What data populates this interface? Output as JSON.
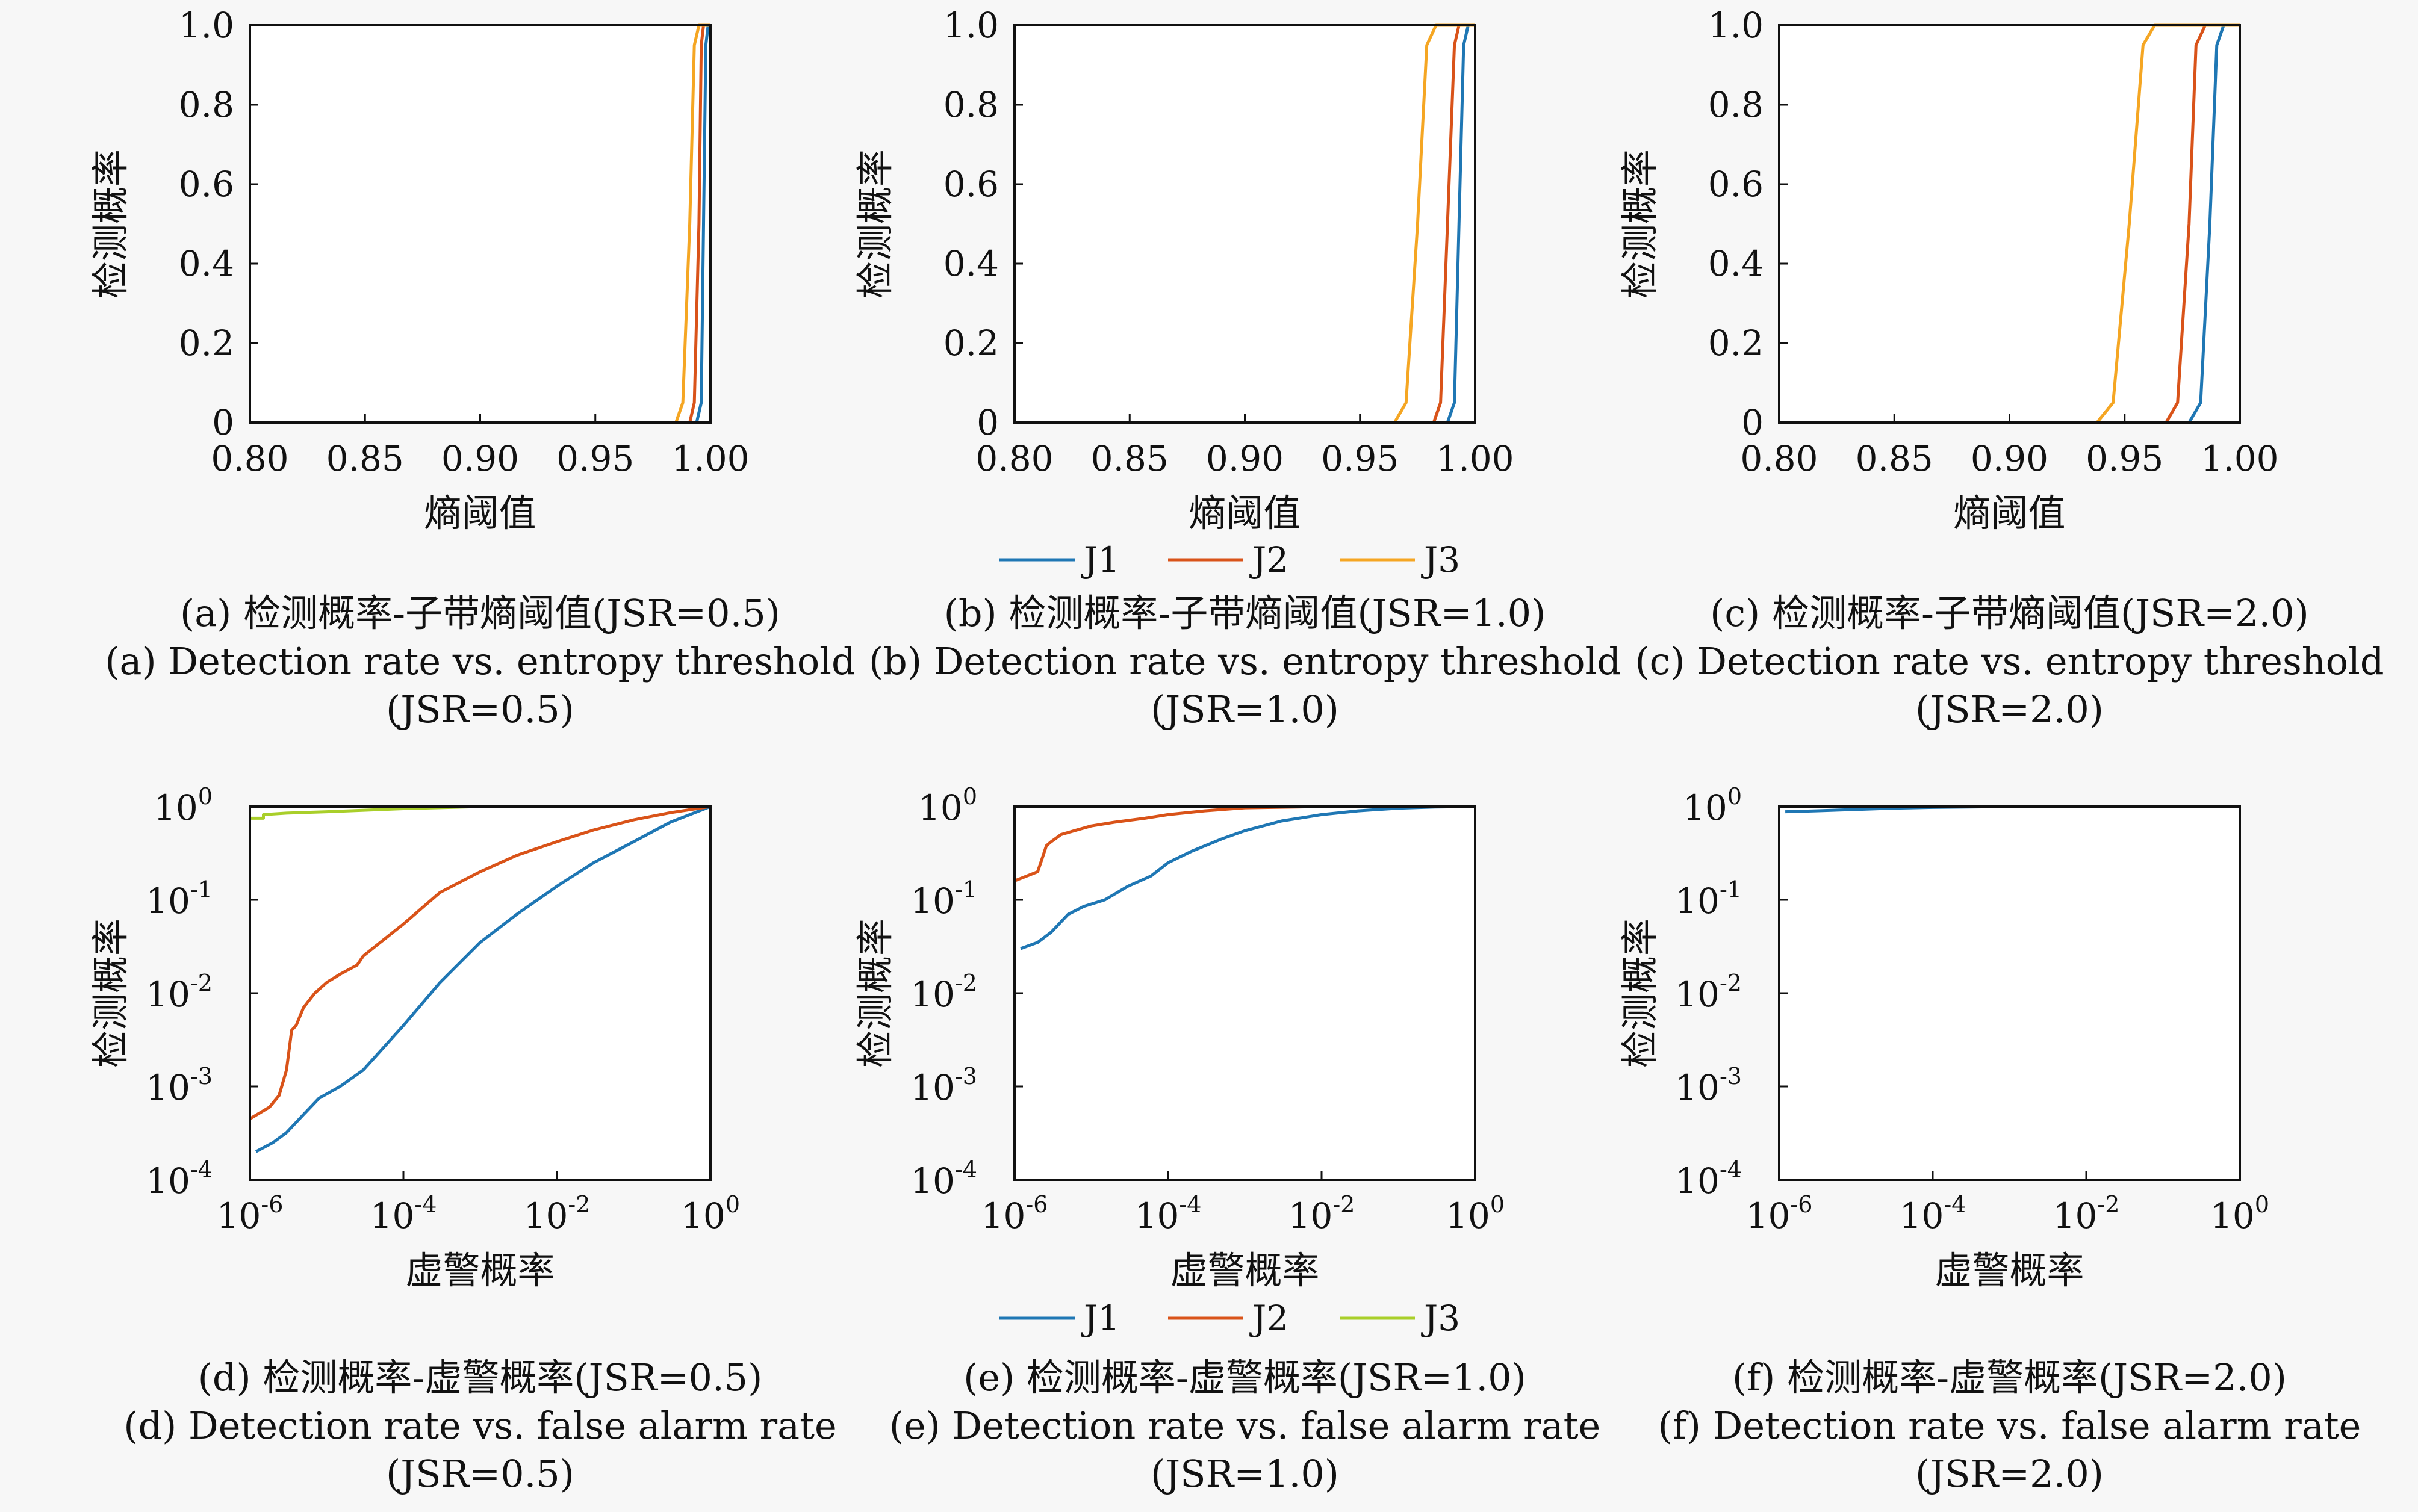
{
  "colors": {
    "J1": "#1f77b4",
    "J2": "#d95319",
    "J3_top": "#f5a623",
    "J3_bottom": "#a9cf2a",
    "axis": "#111111",
    "background": "#f7f7f7"
  },
  "legend_top": {
    "entries": [
      "J1",
      "J2",
      "J3"
    ],
    "colors": [
      "#1f77b4",
      "#d95319",
      "#f5a623"
    ]
  },
  "legend_bottom": {
    "entries": [
      "J1",
      "J2",
      "J3"
    ],
    "colors": [
      "#1f77b4",
      "#d95319",
      "#a9cf2a"
    ]
  },
  "chart_data": [
    {
      "type": "line",
      "panel": "a",
      "xlabel": "熵阈值",
      "ylabel": "检测概率",
      "xlim": [
        0.8,
        1.0
      ],
      "ylim": [
        0,
        1.0
      ],
      "yscale": "linear",
      "xticks": [
        0.8,
        0.85,
        0.9,
        0.95,
        1.0
      ],
      "xtick_labels": [
        "0.80",
        "0.85",
        "0.90",
        "0.95",
        "1.00"
      ],
      "yticks": [
        0,
        0.2,
        0.4,
        0.6,
        0.8,
        1.0
      ],
      "ytick_labels": [
        "0",
        "0.2",
        "0.4",
        "0.6",
        "0.8",
        "1.0"
      ],
      "series": [
        {
          "name": "J1",
          "x": [
            0.8,
            0.994,
            0.996,
            0.997,
            0.998,
            0.999,
            1.0
          ],
          "y": [
            0,
            0,
            0.05,
            0.5,
            0.95,
            1.0,
            1.0
          ]
        },
        {
          "name": "J2",
          "x": [
            0.8,
            0.991,
            0.993,
            0.995,
            0.996,
            0.997,
            1.0
          ],
          "y": [
            0,
            0,
            0.05,
            0.5,
            0.95,
            1.0,
            1.0
          ]
        },
        {
          "name": "J3",
          "x": [
            0.8,
            0.985,
            0.988,
            0.991,
            0.993,
            0.995,
            1.0
          ],
          "y": [
            0,
            0,
            0.05,
            0.5,
            0.95,
            1.0,
            1.0
          ]
        }
      ],
      "caption_cn": "(a) 检测概率-子带熵阈值(JSR=0.5)",
      "caption_en": [
        "(a) Detection rate vs. entropy threshold",
        "(JSR=0.5)"
      ]
    },
    {
      "type": "line",
      "panel": "b",
      "xlabel": "熵阈值",
      "ylabel": "检测概率",
      "xlim": [
        0.8,
        1.0
      ],
      "ylim": [
        0,
        1.0
      ],
      "yscale": "linear",
      "xticks": [
        0.8,
        0.85,
        0.9,
        0.95,
        1.0
      ],
      "xtick_labels": [
        "0.80",
        "0.85",
        "0.90",
        "0.95",
        "1.00"
      ],
      "yticks": [
        0,
        0.2,
        0.4,
        0.6,
        0.8,
        1.0
      ],
      "ytick_labels": [
        "0",
        "0.2",
        "0.4",
        "0.6",
        "0.8",
        "1.0"
      ],
      "series": [
        {
          "name": "J1",
          "x": [
            0.8,
            0.988,
            0.991,
            0.993,
            0.995,
            0.997,
            1.0
          ],
          "y": [
            0,
            0,
            0.05,
            0.5,
            0.95,
            1.0,
            1.0
          ]
        },
        {
          "name": "J2",
          "x": [
            0.8,
            0.982,
            0.985,
            0.988,
            0.991,
            0.993,
            1.0
          ],
          "y": [
            0,
            0,
            0.05,
            0.5,
            0.95,
            1.0,
            1.0
          ]
        },
        {
          "name": "J3",
          "x": [
            0.8,
            0.965,
            0.97,
            0.975,
            0.979,
            0.983,
            1.0
          ],
          "y": [
            0,
            0,
            0.05,
            0.5,
            0.95,
            1.0,
            1.0
          ]
        }
      ],
      "caption_cn": "(b) 检测概率-子带熵阈值(JSR=1.0)",
      "caption_en": [
        "(b) Detection rate vs. entropy threshold",
        "(JSR=1.0)"
      ]
    },
    {
      "type": "line",
      "panel": "c",
      "xlabel": "熵阈值",
      "ylabel": "检测概率",
      "xlim": [
        0.8,
        1.0
      ],
      "ylim": [
        0,
        1.0
      ],
      "yscale": "linear",
      "xticks": [
        0.8,
        0.85,
        0.9,
        0.95,
        1.0
      ],
      "xtick_labels": [
        "0.80",
        "0.85",
        "0.90",
        "0.95",
        "1.00"
      ],
      "yticks": [
        0,
        0.2,
        0.4,
        0.6,
        0.8,
        1.0
      ],
      "ytick_labels": [
        "0",
        "0.2",
        "0.4",
        "0.6",
        "0.8",
        "1.0"
      ],
      "series": [
        {
          "name": "J1",
          "x": [
            0.8,
            0.978,
            0.983,
            0.987,
            0.99,
            0.993,
            1.0
          ],
          "y": [
            0,
            0,
            0.05,
            0.5,
            0.95,
            1.0,
            1.0
          ]
        },
        {
          "name": "J2",
          "x": [
            0.8,
            0.968,
            0.973,
            0.978,
            0.981,
            0.985,
            1.0
          ],
          "y": [
            0,
            0,
            0.05,
            0.5,
            0.95,
            1.0,
            1.0
          ]
        },
        {
          "name": "J3",
          "x": [
            0.8,
            0.938,
            0.945,
            0.952,
            0.958,
            0.963,
            1.0
          ],
          "y": [
            0,
            0,
            0.05,
            0.5,
            0.95,
            1.0,
            1.0
          ]
        }
      ],
      "caption_cn": "(c) 检测概率-子带熵阈值(JSR=2.0)",
      "caption_en": [
        "(c) Detection rate vs. entropy threshold",
        "(JSR=2.0)"
      ]
    },
    {
      "type": "line",
      "panel": "d",
      "xlabel": "虚警概率",
      "ylabel": "检测概率",
      "xscale": "log",
      "yscale": "log",
      "xlim": [
        1e-06,
        1
      ],
      "ylim": [
        0.0001,
        1
      ],
      "xticks": [
        1e-06,
        0.0001,
        0.01,
        1
      ],
      "xtick_labels": [
        [
          "10",
          "-6"
        ],
        [
          "10",
          "-4"
        ],
        [
          "10",
          "-2"
        ],
        [
          "10",
          "0"
        ]
      ],
      "yticks": [
        0.0001,
        0.001,
        0.01,
        0.1,
        1
      ],
      "ytick_labels": [
        [
          "10",
          "-4"
        ],
        [
          "10",
          "-3"
        ],
        [
          "10",
          "-2"
        ],
        [
          "10",
          "-1"
        ],
        [
          "10",
          "0"
        ]
      ],
      "series": [
        {
          "name": "J1",
          "x": [
            1.2e-06,
            2e-06,
            3e-06,
            5e-06,
            8e-06,
            1.5e-05,
            3e-05,
            0.0001,
            0.0003,
            0.001,
            0.003,
            0.01,
            0.03,
            0.1,
            0.3,
            1
          ],
          "y": [
            0.0002,
            0.00025,
            0.00032,
            0.0005,
            0.00075,
            0.001,
            0.0015,
            0.0045,
            0.013,
            0.035,
            0.07,
            0.14,
            0.25,
            0.42,
            0.68,
            1
          ]
        },
        {
          "name": "J2",
          "x": [
            1e-06,
            1.8e-06,
            2.4e-06,
            3e-06,
            3.5e-06,
            4e-06,
            5e-06,
            7e-06,
            1e-05,
            1.5e-05,
            2.5e-05,
            3e-05,
            5e-05,
            0.0001,
            0.0003,
            0.001,
            0.003,
            0.01,
            0.03,
            0.1,
            0.3,
            1
          ],
          "y": [
            0.00045,
            0.0006,
            0.0008,
            0.0015,
            0.004,
            0.0045,
            0.007,
            0.01,
            0.013,
            0.016,
            0.02,
            0.025,
            0.035,
            0.055,
            0.12,
            0.2,
            0.3,
            0.42,
            0.56,
            0.72,
            0.86,
            1
          ]
        },
        {
          "name": "J3",
          "x": [
            1e-06,
            1.5e-06,
            1.5e-06,
            3e-06,
            1e-05,
            0.0001,
            0.001,
            0.01,
            0.1,
            1
          ],
          "y": [
            0.75,
            0.75,
            0.82,
            0.85,
            0.88,
            0.95,
            1,
            1,
            1,
            1
          ]
        }
      ],
      "caption_cn": "(d) 检测概率-虚警概率(JSR=0.5)",
      "caption_en": [
        "(d) Detection rate vs. false alarm rate",
        "(JSR=0.5)"
      ]
    },
    {
      "type": "line",
      "panel": "e",
      "xlabel": "虚警概率",
      "ylabel": "检测概率",
      "xscale": "log",
      "yscale": "log",
      "xlim": [
        1e-06,
        1
      ],
      "ylim": [
        0.0001,
        1
      ],
      "xticks": [
        1e-06,
        0.0001,
        0.01,
        1
      ],
      "xtick_labels": [
        [
          "10",
          "-6"
        ],
        [
          "10",
          "-4"
        ],
        [
          "10",
          "-2"
        ],
        [
          "10",
          "0"
        ]
      ],
      "yticks": [
        0.0001,
        0.001,
        0.01,
        0.1,
        1
      ],
      "ytick_labels": [
        [
          "10",
          "-4"
        ],
        [
          "10",
          "-3"
        ],
        [
          "10",
          "-2"
        ],
        [
          "10",
          "-1"
        ],
        [
          "10",
          "0"
        ]
      ],
      "series": [
        {
          "name": "J1",
          "x": [
            1.2e-06,
            2e-06,
            3e-06,
            5e-06,
            8e-06,
            1.5e-05,
            3e-05,
            6e-05,
            0.0001,
            0.0002,
            0.0005,
            0.001,
            0.003,
            0.01,
            0.03,
            0.1,
            0.3,
            1
          ],
          "y": [
            0.03,
            0.035,
            0.045,
            0.07,
            0.085,
            0.1,
            0.14,
            0.18,
            0.25,
            0.33,
            0.45,
            0.55,
            0.7,
            0.82,
            0.9,
            0.96,
            0.99,
            1
          ]
        },
        {
          "name": "J2",
          "x": [
            1e-06,
            2e-06,
            2.3e-06,
            2.6e-06,
            3e-06,
            3.5e-06,
            4e-06,
            6e-06,
            1e-05,
            2e-05,
            5e-05,
            0.0001,
            0.0003,
            0.001,
            0.01,
            0.1,
            1
          ],
          "y": [
            0.16,
            0.2,
            0.28,
            0.38,
            0.42,
            0.46,
            0.5,
            0.55,
            0.62,
            0.68,
            0.75,
            0.82,
            0.9,
            0.97,
            1,
            1,
            1
          ]
        },
        {
          "name": "J3",
          "x": [
            1e-06,
            0.0001,
            0.01,
            1
          ],
          "y": [
            1,
            1,
            1,
            1
          ]
        }
      ],
      "caption_cn": "(e) 检测概率-虚警概率(JSR=1.0)",
      "caption_en": [
        "(e) Detection rate vs. false alarm rate",
        "(JSR=1.0)"
      ]
    },
    {
      "type": "line",
      "panel": "f",
      "xlabel": "虚警概率",
      "ylabel": "检测概率",
      "xscale": "log",
      "yscale": "log",
      "xlim": [
        1e-06,
        1
      ],
      "ylim": [
        0.0001,
        1
      ],
      "xticks": [
        1e-06,
        0.0001,
        0.01,
        1
      ],
      "xtick_labels": [
        [
          "10",
          "-6"
        ],
        [
          "10",
          "-4"
        ],
        [
          "10",
          "-2"
        ],
        [
          "10",
          "0"
        ]
      ],
      "yticks": [
        0.0001,
        0.001,
        0.01,
        0.1,
        1
      ],
      "ytick_labels": [
        [
          "10",
          "-4"
        ],
        [
          "10",
          "-3"
        ],
        [
          "10",
          "-2"
        ],
        [
          "10",
          "-1"
        ],
        [
          "10",
          "0"
        ]
      ],
      "series": [
        {
          "name": "J1",
          "x": [
            1.2e-06,
            3e-06,
            1e-05,
            3e-05,
            0.0001,
            0.001,
            0.01,
            1
          ],
          "y": [
            0.88,
            0.9,
            0.93,
            0.96,
            0.98,
            1,
            1,
            1
          ]
        },
        {
          "name": "J2",
          "x": [
            1e-06,
            0.0001,
            0.01,
            1
          ],
          "y": [
            1,
            1,
            1,
            1
          ]
        },
        {
          "name": "J3",
          "x": [
            1e-06,
            0.0001,
            0.01,
            1
          ],
          "y": [
            1,
            1,
            1,
            1
          ]
        }
      ],
      "caption_cn": "(f) 检测概率-虚警概率(JSR=2.0)",
      "caption_en": [
        "(f) Detection rate vs. false alarm rate",
        "(JSR=2.0)"
      ]
    }
  ]
}
